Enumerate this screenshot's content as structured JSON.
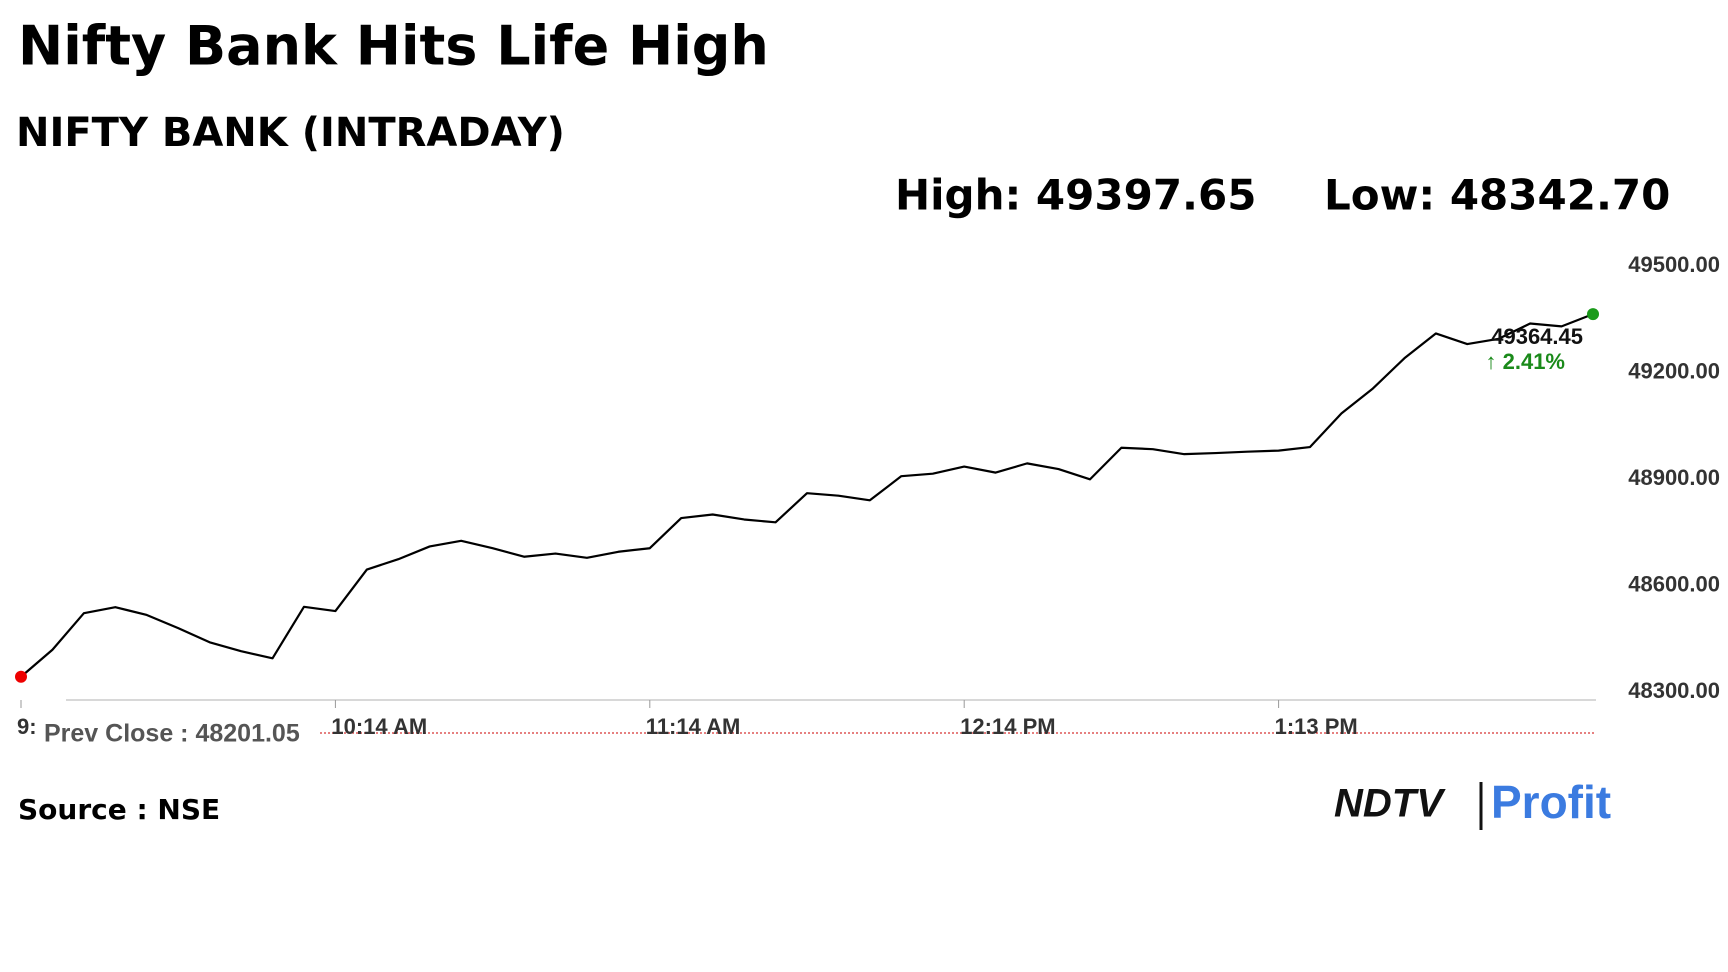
{
  "chart_data": {
    "type": "line",
    "title": "Nifty Bank Hits Life High",
    "subtitle": "NIFTY BANK (INTRADAY)",
    "high_label": "High: 49397.65",
    "low_label": "Low: 48342.70",
    "categories": [
      "9:",
      null,
      null,
      null,
      null,
      null,
      null,
      null,
      null,
      null,
      "10:14 AM",
      null,
      null,
      null,
      null,
      null,
      null,
      null,
      null,
      null,
      "11:14 AM",
      null,
      null,
      null,
      null,
      null,
      null,
      null,
      null,
      null,
      "12:14 PM",
      null,
      null,
      null,
      null,
      null,
      null,
      null,
      null,
      null,
      "1:13 PM",
      null,
      null,
      null,
      null,
      null,
      null,
      null,
      null,
      null,
      null
    ],
    "series": [
      {
        "name": "NIFTY BANK",
        "color": "#000000",
        "values": [
          48343,
          48419,
          48522,
          48539,
          48517,
          48480,
          48440,
          48415,
          48395,
          48540,
          48528,
          48645,
          48674,
          48710,
          48726,
          48705,
          48681,
          48690,
          48678,
          48695,
          48705,
          48790,
          48800,
          48786,
          48778,
          48860,
          48853,
          48840,
          48908,
          48915,
          48935,
          48918,
          48944,
          48928,
          48899,
          48988,
          48984,
          48970,
          48973,
          48977,
          48980,
          48990,
          49085,
          49155,
          49240,
          49310,
          49280,
          49295,
          49338,
          49330,
          49364.45
        ]
      }
    ],
    "last_change": "↑ 2.41%",
    "prev_close_label": "Prev Close : 48201.05",
    "ylim": [
      48300,
      49500
    ],
    "yticks": [
      {
        "value": 48300,
        "label": "48300.00"
      },
      {
        "value": 48600,
        "label": "48600.00"
      },
      {
        "value": 48900,
        "label": "48900.00"
      },
      {
        "value": 49200,
        "label": "49200.00"
      },
      {
        "value": 49500,
        "label": "49500.00"
      }
    ],
    "grid": false,
    "source": "Source : NSE",
    "logo": [
      "NDTV",
      "Profit"
    ]
  }
}
